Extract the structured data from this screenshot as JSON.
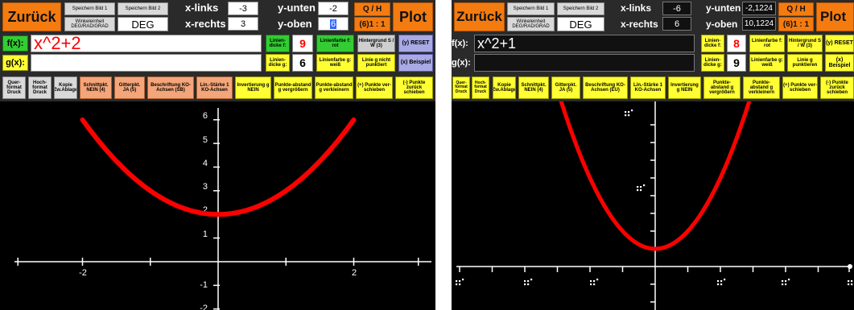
{
  "colors": {
    "orange": "#f47b10",
    "green": "#33cc33",
    "yellow": "#ffff33",
    "purple": "#a9a9e6",
    "salmon": "#f4a67a",
    "curve": "#ff0000",
    "formula_text": "#ff0000",
    "background": "#000000"
  },
  "left": {
    "toolbar": {
      "back": "Zurück",
      "save1": "Speichern Bild 1",
      "save2": "Speichern Bild 2",
      "angle_label": "Winkeleinheit DEG/RAD/GRAD",
      "angle_value": "DEG",
      "x_left_label": "x-links",
      "x_left_value": "-3",
      "x_right_label": "x-rechts",
      "x_right_value": "3",
      "y_bottom_label": "y-unten",
      "y_bottom_value": "-2",
      "y_top_label": "y-oben",
      "y_top_value": "6",
      "qh": "Q / H",
      "ratio": "(6)1 : 1",
      "plot": "Plot"
    },
    "fx_label": "f(x):",
    "fx_value": "x^2+2",
    "gx_label": "g(x):",
    "gx_value": "",
    "line_f_label": "Linien-dicke f:",
    "line_f_value": "9",
    "color_f": "Linienfarbe f: rot",
    "background_btn": "Hintergrund S / W (3)",
    "reset": "(y) RESET",
    "line_g_label": "Linien-dicke g:",
    "line_g_value": "6",
    "color_g": "Linienfarbe g: weiß",
    "dotted_g": "Linie g nicht punktiert",
    "example": "(x) Beispiel",
    "row3": [
      "Quer-format Druck",
      "Hoch-format Druck",
      "Kopie Zw.Ablage",
      "Schnittpkt. NEIN (4)",
      "Gitterpkt. JA (5)",
      "Beschriftung KO-Achsen (SB)",
      "Lin.-Stärke 1 KO-Achsen",
      "Invertierung g NEIN",
      "Punkte-abstand g vergrößern",
      "Punkte-abstand g verkleinern",
      "(+) Punkte ver-schieben",
      "(-) Punkte zurück schieben"
    ],
    "tick_labels": {
      "x": [
        "-2",
        "2"
      ],
      "y": [
        "6",
        "5",
        "4",
        "3",
        "2",
        "1",
        "-1",
        "-2"
      ]
    }
  },
  "right": {
    "toolbar": {
      "back": "Zurück",
      "save1": "Speichern Bild 1",
      "save2": "Speichern Bild 2",
      "angle_label": "Winkeleinheit DEG/RAD/GRAD",
      "angle_value": "DEG",
      "x_left_label": "x-links",
      "x_left_value": "-6",
      "x_right_label": "x-rechts",
      "x_right_value": "6",
      "y_bottom_label": "y-unten",
      "y_bottom_value": "-2,1224",
      "y_top_label": "y-oben",
      "y_top_value": "10,1224",
      "qh": "Q / H",
      "ratio": "(6)1 : 1",
      "plot": "Plot"
    },
    "fx_label": "f(x):",
    "fx_value": "x^2+1",
    "gx_label": "g(x):",
    "gx_value": "",
    "line_f_label": "Linien-dicke f:",
    "line_f_value": "8",
    "color_f": "Linienfarbe f: rot",
    "background_btn": "Hintergrund S / W (3)",
    "reset": "(y) RESET",
    "line_g_label": "Linien-dicke g:",
    "line_g_value": "9",
    "color_g": "Linienfarbe g: weiß",
    "dotted_g": "Linie g punktieren",
    "example": "(x) Beispiel",
    "row3": [
      "Quer-format Druck",
      "Hoch-format Druck",
      "Kopie Zw.Ablage",
      "Schnittpkt. NEIN (4)",
      "Gitterpkt. JA (5)",
      "Beschriftung KO-Achsen (EU)",
      "Lin.-Stärke 1 KO-Achsen",
      "Invertierung g NEIN",
      "Punkte-abstand g vergrößern",
      "Punkte-abstand g verkleinern",
      "(+) Punkte ver-schieben",
      "(-) Punkte zurück schieben"
    ]
  },
  "chart_data": [
    {
      "type": "line",
      "series": [
        {
          "expression": "x^2+2",
          "color": "#ff0000"
        }
      ],
      "xlim": [
        -3,
        3
      ],
      "ylim": [
        -2,
        6
      ],
      "x_ticks": [
        -2,
        2
      ],
      "y_ticks": [
        6,
        5,
        4,
        3,
        2,
        1,
        -1,
        -2
      ],
      "grid": false
    },
    {
      "type": "line",
      "series": [
        {
          "expression": "x^2+1",
          "color": "#ff0000"
        }
      ],
      "xlim": [
        -6,
        6
      ],
      "ylim": [
        -2.1224,
        10.1224
      ],
      "grid": false
    }
  ]
}
